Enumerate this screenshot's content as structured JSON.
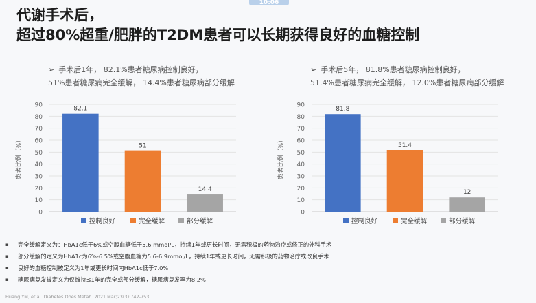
{
  "timer": "10:06",
  "title": {
    "line1": "代谢手术后，",
    "line2": "超过80%超重/肥胖的T2DM患者可以长期获得良好的血糖控制"
  },
  "left_panel": {
    "bullet": "➢",
    "line1": "手术后1年，  82.1%患者糖尿病控制良好，",
    "line2": "51%患者糖尿病完全缓解，  14.4%患者糖尿病部分缓解"
  },
  "right_panel": {
    "bullet": "➢",
    "line1": "手术后5年，  81.8%患者糖尿病控制良好，",
    "line2": "51.4%患者糖尿病完全缓解，  12.0%患者糖尿病部分缓解"
  },
  "chart_data": [
    {
      "type": "bar",
      "categories": [
        "控制良好",
        "完全缓解",
        "部分缓解"
      ],
      "values": [
        82.1,
        51,
        14.4
      ],
      "value_labels": [
        "82.1",
        "51",
        "14.4"
      ],
      "colors": [
        "#4472c4",
        "#ed7d31",
        "#a5a5a5"
      ],
      "ylabel": "患者比例（%）",
      "ylim": [
        0,
        90
      ],
      "yticks": [
        "0",
        "10",
        "20",
        "30",
        "40",
        "50",
        "60",
        "70",
        "80",
        "90"
      ],
      "grid": true,
      "legend": "bottom"
    },
    {
      "type": "bar",
      "categories": [
        "控制良好",
        "完全缓解",
        "部分缓解"
      ],
      "values": [
        81.8,
        51.4,
        12
      ],
      "value_labels": [
        "81.8",
        "51.4",
        "12"
      ],
      "colors": [
        "#4472c4",
        "#ed7d31",
        "#a5a5a5"
      ],
      "ylabel": "患者比例（%）",
      "ylim": [
        0,
        90
      ],
      "yticks": [
        "0",
        "10",
        "20",
        "30",
        "40",
        "50",
        "60",
        "70",
        "80",
        "90"
      ],
      "grid": true,
      "legend": "bottom"
    }
  ],
  "notes": [
    "完全缓解定义为：HbA1c低于6%或空腹血糖低于5.6 mmol/L，持续1年或更长时间，无需积极的药物治疗或修正的外科手术",
    "部分缓解的定义为HbA1c为6%-6.5%或空腹血糖为5.6-6.9mmol/L，持续1年或更长时间，无需积极的药物治疗或改良手术",
    "良好的血糖控制被定义为1年或更长时间内HbA1c低于7.0%",
    "糖尿病复发被定义为仅维持≤1年的完全或部分缓解，糖尿病复发率为8.2%"
  ],
  "reference": "Huang YM, et al. Diabetes Obes Metab. 2021 Mar;23(3):742-753"
}
